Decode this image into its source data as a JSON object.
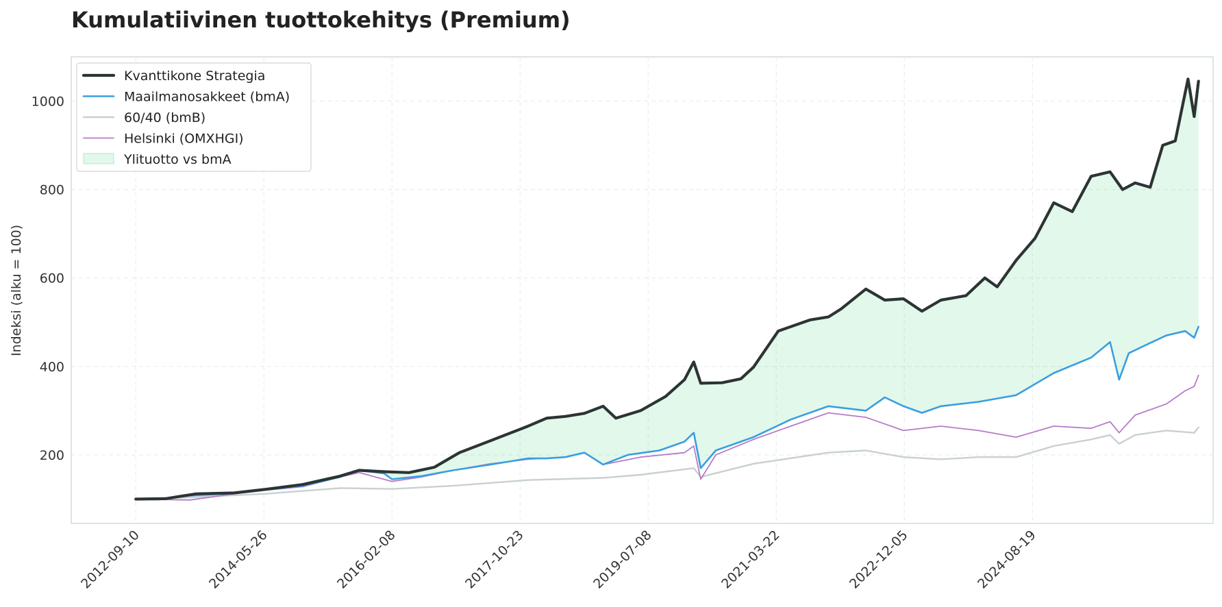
{
  "chart_data": {
    "type": "line",
    "title": "Kumulatiivinen tuottokehitys (Premium)",
    "xlabel": "",
    "ylabel": "Indeksi (alku = 100)",
    "ylim": [
      45,
      1100
    ],
    "yticks": [
      200,
      400,
      600,
      800,
      1000
    ],
    "xlim": [
      "2011-11-01",
      "2027-01-15"
    ],
    "xticks": [
      "2012-09-10",
      "2014-05-26",
      "2016-02-08",
      "2017-10-23",
      "2019-07-08",
      "2021-03-22",
      "2022-12-05",
      "2024-08-19"
    ],
    "grid": true,
    "legend_position": "top-left",
    "fill_between": {
      "label": "Ylituotto vs bmA",
      "upper": "Kvanttikone Strategia",
      "lower": "Maailmanosakkeet (bmA)",
      "color": "#2ecc71"
    },
    "series": [
      {
        "name": "Kvanttikone Strategia",
        "color": "#2c3434",
        "points": [
          [
            "2012-09-10",
            100
          ],
          [
            "2013-02-01",
            101
          ],
          [
            "2013-07-01",
            112
          ],
          [
            "2014-01-01",
            114
          ],
          [
            "2014-06-01",
            122
          ],
          [
            "2014-12-01",
            133
          ],
          [
            "2015-06-01",
            152
          ],
          [
            "2015-09-01",
            165
          ],
          [
            "2016-01-01",
            162
          ],
          [
            "2016-05-01",
            160
          ],
          [
            "2016-09-01",
            172
          ],
          [
            "2017-01-01",
            205
          ],
          [
            "2017-06-01",
            232
          ],
          [
            "2017-12-01",
            265
          ],
          [
            "2018-03-01",
            283
          ],
          [
            "2018-06-01",
            287
          ],
          [
            "2018-09-01",
            294
          ],
          [
            "2018-12-01",
            310
          ],
          [
            "2019-02-01",
            283
          ],
          [
            "2019-06-01",
            300
          ],
          [
            "2019-10-01",
            332
          ],
          [
            "2020-01-01",
            370
          ],
          [
            "2020-02-15",
            410
          ],
          [
            "2020-03-20",
            362
          ],
          [
            "2020-07-01",
            363
          ],
          [
            "2020-10-01",
            372
          ],
          [
            "2020-12-01",
            398
          ],
          [
            "2021-04-01",
            480
          ],
          [
            "2021-09-01",
            505
          ],
          [
            "2021-12-01",
            512
          ],
          [
            "2022-02-01",
            530
          ],
          [
            "2022-06-01",
            575
          ],
          [
            "2022-09-01",
            550
          ],
          [
            "2022-12-01",
            553
          ],
          [
            "2023-03-01",
            525
          ],
          [
            "2023-06-01",
            550
          ],
          [
            "2023-10-01",
            560
          ],
          [
            "2024-01-01",
            600
          ],
          [
            "2024-03-01",
            580
          ],
          [
            "2024-06-01",
            640
          ],
          [
            "2024-09-01",
            690
          ],
          [
            "2024-12-01",
            770
          ],
          [
            "2025-03-01",
            750
          ],
          [
            "2025-06-01",
            830
          ],
          [
            "2025-09-01",
            840
          ],
          [
            "2025-11-01",
            800
          ],
          [
            "2026-01-01",
            815
          ],
          [
            "2026-03-15",
            805
          ],
          [
            "2026-05-15",
            900
          ],
          [
            "2026-07-15",
            910
          ],
          [
            "2026-09-15",
            1050
          ],
          [
            "2026-10-15",
            965
          ],
          [
            "2026-11-05",
            1045
          ]
        ]
      },
      {
        "name": "Maailmanosakkeet (bmA)",
        "color": "#3a9ee0",
        "points": [
          [
            "2012-09-10",
            100
          ],
          [
            "2013-01-01",
            99
          ],
          [
            "2013-06-01",
            108
          ],
          [
            "2014-01-01",
            113
          ],
          [
            "2014-06-01",
            121
          ],
          [
            "2014-12-01",
            130
          ],
          [
            "2015-06-01",
            150
          ],
          [
            "2015-09-01",
            165
          ],
          [
            "2016-01-01",
            158
          ],
          [
            "2016-02-08",
            145
          ],
          [
            "2016-07-01",
            152
          ],
          [
            "2016-12-01",
            165
          ],
          [
            "2017-06-01",
            178
          ],
          [
            "2017-12-01",
            192
          ],
          [
            "2018-03-01",
            192
          ],
          [
            "2018-06-01",
            195
          ],
          [
            "2018-09-01",
            205
          ],
          [
            "2018-12-01",
            178
          ],
          [
            "2019-04-01",
            200
          ],
          [
            "2019-09-01",
            210
          ],
          [
            "2020-01-01",
            230
          ],
          [
            "2020-02-15",
            250
          ],
          [
            "2020-03-20",
            170
          ],
          [
            "2020-06-01",
            210
          ],
          [
            "2020-12-01",
            240
          ],
          [
            "2021-06-01",
            280
          ],
          [
            "2021-12-01",
            310
          ],
          [
            "2022-06-01",
            300
          ],
          [
            "2022-09-01",
            330
          ],
          [
            "2022-12-01",
            310
          ],
          [
            "2023-03-01",
            295
          ],
          [
            "2023-06-01",
            310
          ],
          [
            "2023-12-01",
            320
          ],
          [
            "2024-06-01",
            335
          ],
          [
            "2024-12-01",
            385
          ],
          [
            "2025-06-01",
            420
          ],
          [
            "2025-09-01",
            455
          ],
          [
            "2025-10-15",
            370
          ],
          [
            "2025-12-01",
            430
          ],
          [
            "2026-03-01",
            450
          ],
          [
            "2026-06-01",
            470
          ],
          [
            "2026-09-01",
            480
          ],
          [
            "2026-10-15",
            465
          ],
          [
            "2026-11-05",
            490
          ]
        ]
      },
      {
        "name": "60/40 (bmB)",
        "color": "#c8d0d0",
        "points": [
          [
            "2012-09-10",
            100
          ],
          [
            "2013-06-01",
            104
          ],
          [
            "2014-06-01",
            112
          ],
          [
            "2015-06-01",
            125
          ],
          [
            "2016-02-08",
            123
          ],
          [
            "2016-12-01",
            130
          ],
          [
            "2017-12-01",
            143
          ],
          [
            "2018-12-01",
            148
          ],
          [
            "2019-06-01",
            155
          ],
          [
            "2020-02-15",
            170
          ],
          [
            "2020-03-20",
            150
          ],
          [
            "2020-12-01",
            180
          ],
          [
            "2021-12-01",
            205
          ],
          [
            "2022-06-01",
            210
          ],
          [
            "2022-12-01",
            195
          ],
          [
            "2023-06-01",
            190
          ],
          [
            "2023-12-01",
            195
          ],
          [
            "2024-06-01",
            195
          ],
          [
            "2024-12-01",
            220
          ],
          [
            "2025-06-01",
            235
          ],
          [
            "2025-09-01",
            245
          ],
          [
            "2025-10-15",
            225
          ],
          [
            "2026-01-01",
            245
          ],
          [
            "2026-06-01",
            255
          ],
          [
            "2026-10-15",
            250
          ],
          [
            "2026-11-05",
            262
          ]
        ]
      },
      {
        "name": "Helsinki (OMXHGI)",
        "color": "#b57cc8",
        "points": [
          [
            "2012-09-10",
            100
          ],
          [
            "2013-06-01",
            98
          ],
          [
            "2014-01-01",
            112
          ],
          [
            "2014-06-01",
            120
          ],
          [
            "2014-12-01",
            128
          ],
          [
            "2015-06-01",
            150
          ],
          [
            "2015-09-01",
            160
          ],
          [
            "2016-02-08",
            140
          ],
          [
            "2016-07-01",
            150
          ],
          [
            "2016-12-01",
            165
          ],
          [
            "2017-06-01",
            180
          ],
          [
            "2017-12-01",
            190
          ],
          [
            "2018-06-01",
            195
          ],
          [
            "2018-09-01",
            205
          ],
          [
            "2018-12-01",
            178
          ],
          [
            "2019-06-01",
            195
          ],
          [
            "2020-01-01",
            205
          ],
          [
            "2020-02-15",
            220
          ],
          [
            "2020-03-20",
            145
          ],
          [
            "2020-06-01",
            200
          ],
          [
            "2020-12-01",
            235
          ],
          [
            "2021-06-01",
            265
          ],
          [
            "2021-12-01",
            295
          ],
          [
            "2022-06-01",
            285
          ],
          [
            "2022-09-01",
            270
          ],
          [
            "2022-12-01",
            255
          ],
          [
            "2023-06-01",
            265
          ],
          [
            "2023-12-01",
            255
          ],
          [
            "2024-06-01",
            240
          ],
          [
            "2024-12-01",
            265
          ],
          [
            "2025-06-01",
            260
          ],
          [
            "2025-09-01",
            275
          ],
          [
            "2025-10-15",
            250
          ],
          [
            "2026-01-01",
            290
          ],
          [
            "2026-06-01",
            315
          ],
          [
            "2026-09-01",
            345
          ],
          [
            "2026-10-15",
            355
          ],
          [
            "2026-11-05",
            380
          ]
        ]
      }
    ]
  }
}
